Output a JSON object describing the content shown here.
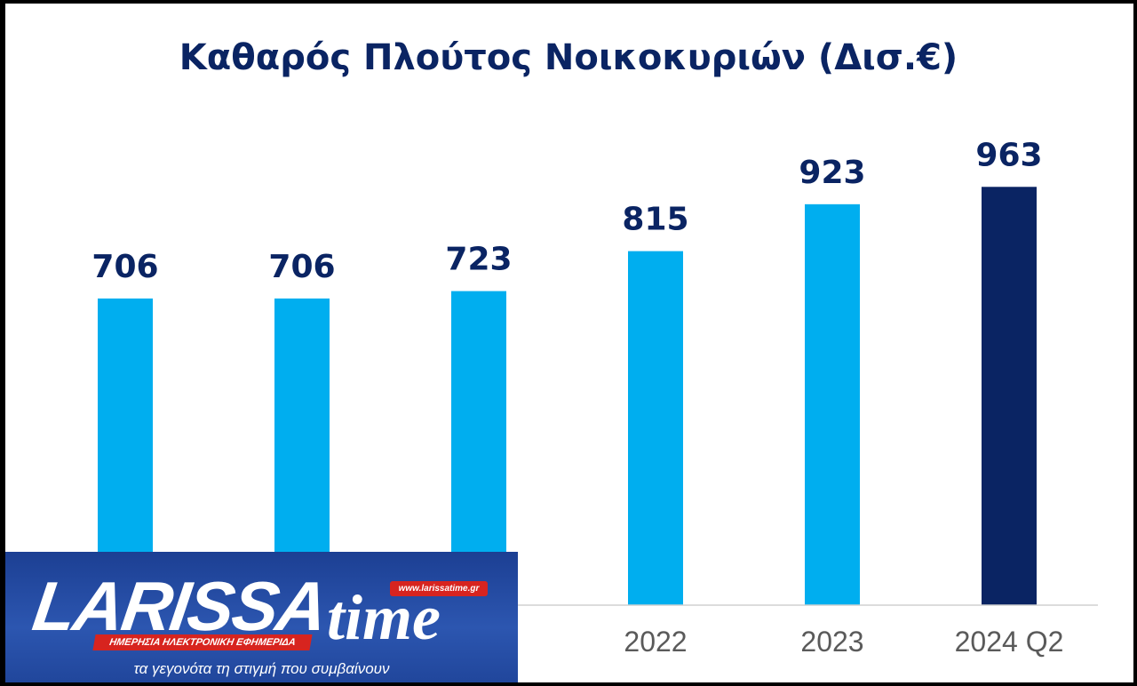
{
  "chart_data": {
    "type": "bar",
    "title": "Καθαρός Πλούτος Νοικοκυριών (Δισ.€)",
    "categories": [
      "",
      "",
      "",
      "2022",
      "2023",
      "2024 Q2"
    ],
    "values": [
      706,
      706,
      723,
      815,
      923,
      963
    ],
    "colors": [
      "#00aeef",
      "#00aeef",
      "#00aeef",
      "#00aeef",
      "#00aeef",
      "#0a2463"
    ],
    "label_color": "#0a2463",
    "axis_label_color": "#5a5a5a",
    "grid": false,
    "ylim": [
      0,
      1000
    ]
  },
  "watermark": {
    "brand_main": "LARISSA",
    "brand_time": "time",
    "url": "www.larissatime.gr",
    "subtitle": "ΗΜΕΡΗΣΙΑ ΗΛΕΚΤΡΟΝΙΚΗ ΕΦΗΜΕΡΙΔΑ",
    "tagline": "τα γεγονότα τη στιγμή που συμβαίνουν"
  }
}
